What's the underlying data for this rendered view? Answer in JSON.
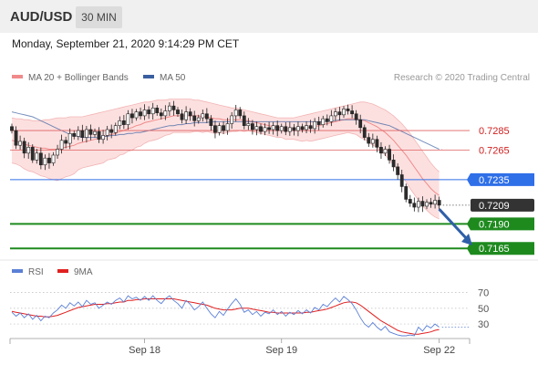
{
  "header": {
    "symbol": "AUD/USD",
    "timeframe": "30 MIN"
  },
  "datetime": "Monday, September 21, 2020 9:14:29 PM CET",
  "legend": {
    "ma20": {
      "label": "MA 20 + Bollinger Bands",
      "color": "#f08a8a"
    },
    "ma50": {
      "label": "MA 50",
      "color": "#3a5fa0"
    },
    "rsi": {
      "label": "RSI",
      "color": "#5b7fd6"
    },
    "ma9": {
      "label": "9MA",
      "color": "#e02020"
    }
  },
  "credit": "Research © 2020 Trading Central",
  "colors": {
    "up_candle": "#ffffff",
    "down_candle": "#2b2b2b",
    "resistance": "#e06060",
    "pivot": "#2f6fe8",
    "support": "#1e8a1e",
    "current": "#333333",
    "arrow": "#2f5fa8",
    "band_fill": "#fbd6d6"
  },
  "chart_data": [
    {
      "type": "candlestick",
      "y_range": [
        0.7155,
        0.7325
      ],
      "x_ticks": [
        {
          "label": "Sep 18",
          "index": 32
        },
        {
          "label": "Sep 19",
          "index": 65
        },
        {
          "label": "Sep 22",
          "index": 103
        }
      ],
      "levels": [
        {
          "value": 0.7285,
          "label": "0.7285",
          "kind": "resistance"
        },
        {
          "value": 0.7265,
          "label": "0.7265",
          "kind": "resistance"
        },
        {
          "value": 0.7235,
          "label": "0.7235",
          "kind": "pivot"
        },
        {
          "value": 0.7209,
          "label": "0.7209",
          "kind": "current"
        },
        {
          "value": 0.719,
          "label": "0.7190",
          "kind": "support"
        },
        {
          "value": 0.7165,
          "label": "0.7165",
          "kind": "support"
        }
      ],
      "close": [
        0.7285,
        0.727,
        0.7274,
        0.7262,
        0.7268,
        0.7255,
        0.7262,
        0.725,
        0.7257,
        0.7252,
        0.726,
        0.7266,
        0.7275,
        0.7272,
        0.7282,
        0.7279,
        0.7285,
        0.7278,
        0.7286,
        0.7281,
        0.7284,
        0.7276,
        0.728,
        0.7286,
        0.7283,
        0.729,
        0.7295,
        0.7291,
        0.7302,
        0.7298,
        0.7304,
        0.73,
        0.7306,
        0.7302,
        0.7308,
        0.7303,
        0.73,
        0.7305,
        0.731,
        0.7306,
        0.7302,
        0.7296,
        0.7304,
        0.73,
        0.7295,
        0.7298,
        0.7302,
        0.7297,
        0.729,
        0.7283,
        0.729,
        0.7285,
        0.7292,
        0.73,
        0.7306,
        0.73,
        0.729,
        0.7292,
        0.7286,
        0.7289,
        0.7284,
        0.7288,
        0.7286,
        0.729,
        0.7285,
        0.7289,
        0.7284,
        0.7288,
        0.7285,
        0.7289,
        0.7286,
        0.729,
        0.7287,
        0.7294,
        0.7291,
        0.7297,
        0.7294,
        0.73,
        0.7304,
        0.7301,
        0.7307,
        0.7305,
        0.7302,
        0.7296,
        0.7288,
        0.7278,
        0.7272,
        0.7276,
        0.7268,
        0.7262,
        0.7266,
        0.7255,
        0.7248,
        0.724,
        0.7228,
        0.7215,
        0.7211,
        0.7207,
        0.7213,
        0.7208,
        0.7212,
        0.721,
        0.7214,
        0.7209
      ],
      "overlays": {
        "bollinger": {
          "upper": [
            0.7298,
            0.7297,
            0.7297,
            0.7296,
            0.7296,
            0.7295,
            0.7295,
            0.7295,
            0.7296,
            0.7296,
            0.7297,
            0.7298,
            0.7298,
            0.7298,
            0.7299,
            0.7299,
            0.7299,
            0.7299,
            0.73,
            0.7301,
            0.7302,
            0.7303,
            0.7304,
            0.7305,
            0.7306,
            0.7307,
            0.7308,
            0.7309,
            0.731,
            0.7311,
            0.7312,
            0.7313,
            0.7314,
            0.7314,
            0.7315,
            0.7316,
            0.7316,
            0.7316,
            0.7317,
            0.7317,
            0.7317,
            0.7317,
            0.7317,
            0.7317,
            0.7316,
            0.7316,
            0.7315,
            0.7314,
            0.7313,
            0.7312,
            0.7311,
            0.731,
            0.7309,
            0.7308,
            0.7308,
            0.7307,
            0.7306,
            0.7305,
            0.7304,
            0.7303,
            0.7302,
            0.7301,
            0.73,
            0.7299,
            0.7298,
            0.7298,
            0.7298,
            0.7298,
            0.7298,
            0.7299,
            0.73,
            0.7301,
            0.7302,
            0.7303,
            0.7304,
            0.7305,
            0.7306,
            0.7307,
            0.7308,
            0.7309,
            0.731,
            0.7311,
            0.7312,
            0.7313,
            0.7314,
            0.7314,
            0.7313,
            0.7312,
            0.731,
            0.7308,
            0.7306,
            0.7303,
            0.73,
            0.7296,
            0.7292,
            0.7287,
            0.7282,
            0.7276,
            0.727,
            0.7264,
            0.7258,
            0.7252,
            0.7247,
            0.7243
          ],
          "middle": [
            0.7275,
            0.7274,
            0.7273,
            0.7271,
            0.727,
            0.7269,
            0.7268,
            0.7267,
            0.7267,
            0.7266,
            0.7266,
            0.7266,
            0.7267,
            0.7268,
            0.7269,
            0.727,
            0.7272,
            0.7273,
            0.7274,
            0.7275,
            0.7276,
            0.7277,
            0.7278,
            0.728,
            0.7281,
            0.7282,
            0.7284,
            0.7285,
            0.7287,
            0.7288,
            0.729,
            0.7291,
            0.7293,
            0.7294,
            0.7295,
            0.7296,
            0.7297,
            0.7298,
            0.7299,
            0.73,
            0.73,
            0.73,
            0.73,
            0.73,
            0.73,
            0.73,
            0.7299,
            0.7299,
            0.7298,
            0.7297,
            0.7297,
            0.7296,
            0.7296,
            0.7296,
            0.7296,
            0.7296,
            0.7295,
            0.7295,
            0.7294,
            0.7293,
            0.7292,
            0.7291,
            0.729,
            0.7289,
            0.7288,
            0.7288,
            0.7287,
            0.7287,
            0.7287,
            0.7287,
            0.7287,
            0.7288,
            0.7288,
            0.7289,
            0.729,
            0.7291,
            0.7292,
            0.7293,
            0.7294,
            0.7295,
            0.7296,
            0.7297,
            0.7297,
            0.7297,
            0.7296,
            0.7295,
            0.7293,
            0.7291,
            0.7289,
            0.7286,
            0.7283,
            0.7279,
            0.7275,
            0.727,
            0.7265,
            0.726,
            0.7254,
            0.7248,
            0.7242,
            0.7236,
            0.7231,
            0.7226,
            0.7222,
            0.7219
          ],
          "lower": [
            0.7252,
            0.7251,
            0.7249,
            0.7246,
            0.7244,
            0.7243,
            0.7241,
            0.7239,
            0.7238,
            0.7236,
            0.7235,
            0.7234,
            0.7236,
            0.7238,
            0.7239,
            0.7241,
            0.7245,
            0.7247,
            0.7248,
            0.7249,
            0.725,
            0.7251,
            0.7252,
            0.7255,
            0.7256,
            0.7257,
            0.726,
            0.7261,
            0.7264,
            0.7265,
            0.7268,
            0.7269,
            0.7272,
            0.7274,
            0.7275,
            0.7276,
            0.7278,
            0.728,
            0.7281,
            0.7283,
            0.7283,
            0.7283,
            0.7283,
            0.7283,
            0.7284,
            0.7284,
            0.7283,
            0.7284,
            0.7283,
            0.7282,
            0.7283,
            0.7282,
            0.7283,
            0.7284,
            0.7284,
            0.7285,
            0.7284,
            0.7285,
            0.7284,
            0.7283,
            0.7282,
            0.7281,
            0.728,
            0.7279,
            0.7278,
            0.7278,
            0.7276,
            0.7276,
            0.7276,
            0.7275,
            0.7274,
            0.7275,
            0.7274,
            0.7275,
            0.7276,
            0.7277,
            0.7278,
            0.7279,
            0.728,
            0.7281,
            0.7282,
            0.7283,
            0.7282,
            0.7281,
            0.7278,
            0.7276,
            0.7273,
            0.727,
            0.7268,
            0.7264,
            0.726,
            0.7255,
            0.725,
            0.7244,
            0.7238,
            0.7233,
            0.7226,
            0.722,
            0.7214,
            0.7208,
            0.7204,
            0.72,
            0.7197,
            0.7195
          ]
        },
        "ma50": [
          0.7304,
          0.7303,
          0.7302,
          0.7301,
          0.73,
          0.7299,
          0.7297,
          0.7295,
          0.7293,
          0.7291,
          0.7289,
          0.7287,
          0.7285,
          0.7283,
          0.7281,
          0.728,
          0.7279,
          0.7278,
          0.7278,
          0.7278,
          0.7278,
          0.7278,
          0.7279,
          0.7279,
          0.728,
          0.728,
          0.7281,
          0.7281,
          0.7282,
          0.7282,
          0.7283,
          0.7283,
          0.7284,
          0.7285,
          0.7286,
          0.7287,
          0.7288,
          0.7289,
          0.729,
          0.729,
          0.7291,
          0.7291,
          0.7292,
          0.7292,
          0.7293,
          0.7293,
          0.7293,
          0.7293,
          0.7294,
          0.7294,
          0.7294,
          0.7294,
          0.7294,
          0.7294,
          0.7294,
          0.7294,
          0.7294,
          0.7294,
          0.7294,
          0.7294,
          0.7294,
          0.7294,
          0.7294,
          0.7294,
          0.7294,
          0.7294,
          0.7294,
          0.7294,
          0.7294,
          0.7294,
          0.7294,
          0.7294,
          0.7294,
          0.7294,
          0.7294,
          0.7294,
          0.7295,
          0.7295,
          0.7295,
          0.7296,
          0.7296,
          0.7296,
          0.7296,
          0.7296,
          0.7296,
          0.7296,
          0.7295,
          0.7294,
          0.7293,
          0.7292,
          0.7291,
          0.729,
          0.7288,
          0.7286,
          0.7284,
          0.7282,
          0.728,
          0.7278,
          0.7276,
          0.7274,
          0.7272,
          0.727,
          0.7268,
          0.7266
        ]
      },
      "projection": {
        "from_index": 103,
        "from_value": 0.7205,
        "to_index": 111,
        "to_value": 0.7168
      }
    },
    {
      "type": "line",
      "y_ticks": [
        30,
        50,
        70
      ],
      "y_range": [
        15,
        80
      ],
      "series": [
        {
          "name": "RSI",
          "values": [
            45,
            40,
            44,
            38,
            43,
            36,
            41,
            34,
            40,
            38,
            44,
            48,
            54,
            50,
            57,
            53,
            58,
            52,
            60,
            55,
            57,
            50,
            54,
            58,
            55,
            60,
            63,
            58,
            66,
            62,
            64,
            60,
            65,
            60,
            66,
            60,
            56,
            62,
            66,
            60,
            56,
            50,
            60,
            55,
            48,
            52,
            58,
            50,
            43,
            38,
            46,
            41,
            49,
            56,
            62,
            55,
            45,
            48,
            42,
            46,
            40,
            45,
            43,
            48,
            42,
            46,
            40,
            45,
            42,
            47,
            43,
            48,
            44,
            51,
            48,
            55,
            52,
            58,
            63,
            58,
            65,
            61,
            56,
            48,
            38,
            30,
            26,
            32,
            26,
            22,
            27,
            20,
            18,
            16,
            15,
            15,
            16,
            15,
            26,
            21,
            28,
            25,
            30,
            26
          ]
        },
        {
          "name": "9MA",
          "values": [
            46,
            45,
            44,
            43,
            42,
            41,
            40,
            40,
            39,
            39,
            40,
            41,
            43,
            45,
            47,
            49,
            51,
            52,
            53,
            54,
            55,
            55,
            55,
            56,
            56,
            57,
            58,
            58,
            60,
            60,
            61,
            61,
            62,
            62,
            62,
            62,
            62,
            62,
            62,
            62,
            61,
            60,
            59,
            58,
            57,
            56,
            55,
            54,
            52,
            50,
            49,
            48,
            48,
            48,
            49,
            50,
            50,
            50,
            49,
            48,
            47,
            46,
            45,
            45,
            44,
            44,
            44,
            44,
            44,
            44,
            44,
            45,
            45,
            46,
            47,
            48,
            49,
            51,
            53,
            55,
            57,
            58,
            58,
            57,
            54,
            50,
            46,
            42,
            38,
            34,
            31,
            28,
            25,
            22,
            20,
            19,
            18,
            17,
            17,
            18,
            19,
            20,
            22,
            23
          ]
        }
      ]
    }
  ]
}
